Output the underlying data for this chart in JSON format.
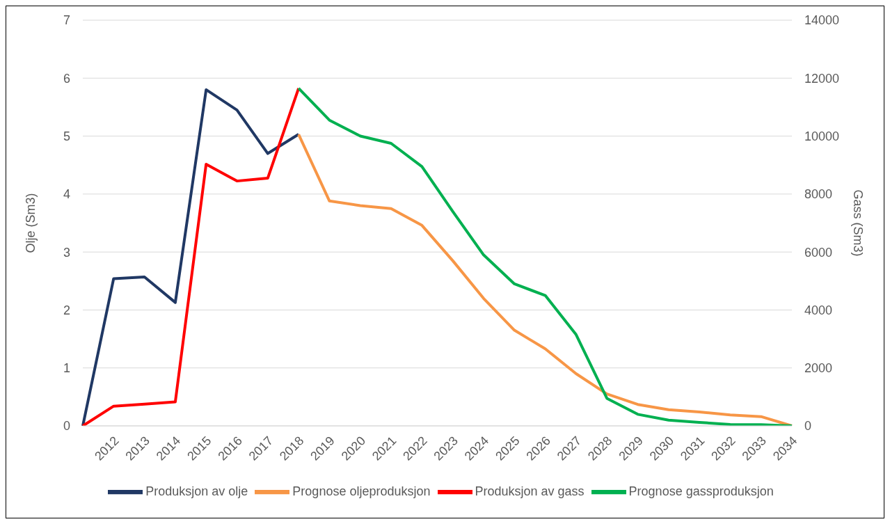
{
  "chart_data": {
    "type": "line",
    "ylabel": "Olje (Sm3)",
    "y2label": "Gass (Sm3)",
    "categories": [
      null,
      "2012",
      "2013",
      "2014",
      "2015",
      "2016",
      "2017",
      "2018",
      "2019",
      "2020",
      "2021",
      "2022",
      "2023",
      "2024",
      "2025",
      "2026",
      "2027",
      "2028",
      "2029",
      "2030",
      "2031",
      "2032",
      "2033",
      "2034"
    ],
    "series": [
      {
        "name": "Produksjon av olje",
        "color": "#203864",
        "values": [
          0,
          2.54,
          2.57,
          2.13,
          5.8,
          5.45,
          4.7,
          5.03,
          null,
          null,
          null,
          null,
          null,
          null,
          null,
          null,
          null,
          null,
          null,
          null,
          null,
          null,
          null,
          null
        ]
      },
      {
        "name": "Prognose oljeproduksjon",
        "color": "#f79646",
        "values": [
          null,
          null,
          null,
          null,
          null,
          null,
          null,
          5.03,
          3.88,
          3.8,
          3.75,
          3.46,
          2.85,
          2.2,
          1.65,
          1.33,
          0.9,
          0.55,
          0.37,
          0.28,
          0.24,
          0.19,
          0.16,
          0
        ]
      },
      {
        "name": "Produksjon av gass",
        "color": "#ff0000",
        "axis": "y2",
        "values": [
          0,
          680,
          750,
          830,
          9030,
          8450,
          8550,
          11650,
          null,
          null,
          null,
          null,
          null,
          null,
          null,
          null,
          null,
          null,
          null,
          null,
          null,
          null,
          null,
          null
        ]
      },
      {
        "name": "Prognose gassproduksjon",
        "color": "#00b050",
        "axis": "y2",
        "values": [
          null,
          null,
          null,
          null,
          null,
          null,
          null,
          11650,
          10550,
          10000,
          9750,
          8950,
          7400,
          5900,
          4900,
          4500,
          3150,
          950,
          400,
          200,
          120,
          50,
          40,
          0
        ]
      }
    ],
    "ylim": [
      0,
      7
    ],
    "yticks": [
      0,
      1,
      2,
      3,
      4,
      5,
      6,
      7
    ],
    "y2lim": [
      0,
      14000
    ],
    "y2ticks": [
      0,
      2000,
      4000,
      6000,
      8000,
      10000,
      12000,
      14000
    ],
    "grid": "y",
    "legend": "bottom",
    "marker": "none",
    "line_style": "solid"
  }
}
